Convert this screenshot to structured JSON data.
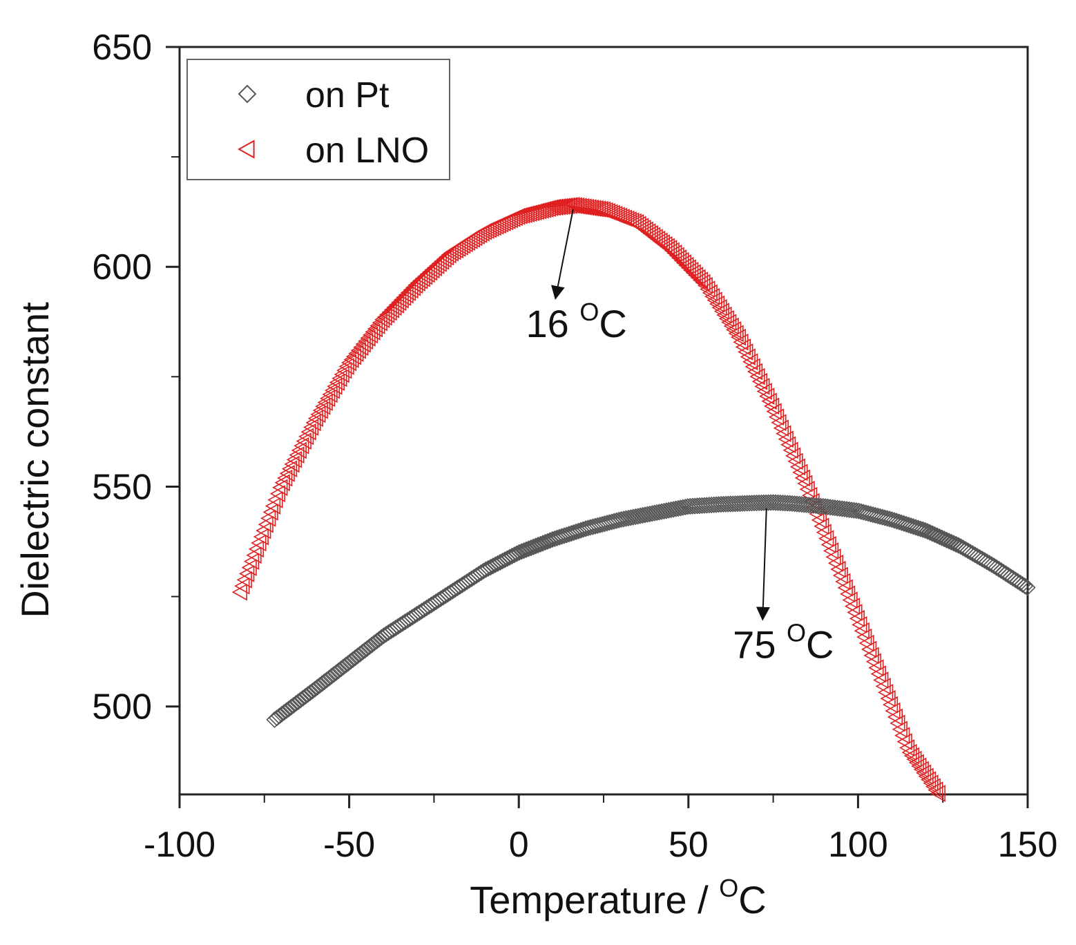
{
  "chart_data": {
    "type": "scatter",
    "title": "",
    "xlabel": "Temperature / ",
    "xlabel_sup": "O",
    "xlabel_unit": "C",
    "ylabel": "Dielectric constant",
    "xlim": [
      -100,
      150
    ],
    "ylim": [
      480,
      650
    ],
    "x_ticks": [
      -100,
      -50,
      0,
      50,
      100,
      150
    ],
    "y_ticks": [
      500,
      550,
      600,
      650
    ],
    "x_minor_step": 25,
    "y_minor_step": 25,
    "legend_position": "top-left",
    "series": [
      {
        "name": "on Pt",
        "marker": "diamond",
        "color": "#555555",
        "x_range": [
          -72,
          150
        ],
        "peak_x": 75,
        "points": [
          [
            -72,
            497
          ],
          [
            -60,
            504
          ],
          [
            -50,
            510
          ],
          [
            -40,
            516
          ],
          [
            -30,
            521
          ],
          [
            -20,
            526
          ],
          [
            -10,
            531
          ],
          [
            0,
            535
          ],
          [
            10,
            538
          ],
          [
            20,
            540.5
          ],
          [
            30,
            542.5
          ],
          [
            40,
            544
          ],
          [
            50,
            545.5
          ],
          [
            60,
            546
          ],
          [
            70,
            546.3
          ],
          [
            75,
            546.4
          ],
          [
            80,
            546.2
          ],
          [
            90,
            545.5
          ],
          [
            100,
            544.5
          ],
          [
            110,
            542.5
          ],
          [
            120,
            540
          ],
          [
            130,
            536.5
          ],
          [
            140,
            532
          ],
          [
            150,
            527
          ]
        ]
      },
      {
        "name": "on LNO",
        "marker": "triangle-left",
        "color": "#e02020",
        "x_range": [
          -82,
          124
        ],
        "peak_x": 16,
        "points": [
          [
            -82,
            526
          ],
          [
            -75,
            540
          ],
          [
            -70,
            550
          ],
          [
            -60,
            565
          ],
          [
            -50,
            578
          ],
          [
            -40,
            588
          ],
          [
            -30,
            596
          ],
          [
            -20,
            603
          ],
          [
            -10,
            608
          ],
          [
            0,
            611.5
          ],
          [
            10,
            613.5
          ],
          [
            16,
            614
          ],
          [
            25,
            613
          ],
          [
            35,
            610
          ],
          [
            45,
            604
          ],
          [
            55,
            596
          ],
          [
            65,
            584
          ],
          [
            75,
            568
          ],
          [
            85,
            550
          ],
          [
            95,
            530
          ],
          [
            105,
            510
          ],
          [
            115,
            490
          ],
          [
            124,
            480
          ]
        ]
      }
    ],
    "annotations": [
      {
        "label": "16",
        "sup": "O",
        "unit": "C",
        "target": [
          16,
          614
        ],
        "text_at": [
          17,
          584
        ]
      },
      {
        "label": "75",
        "sup": "O",
        "unit": "C",
        "target": [
          73,
          546
        ],
        "text_at": [
          78,
          511
        ]
      }
    ]
  },
  "colors": {
    "axis": "#222222",
    "pt": "#555555",
    "lno": "#e02020"
  }
}
